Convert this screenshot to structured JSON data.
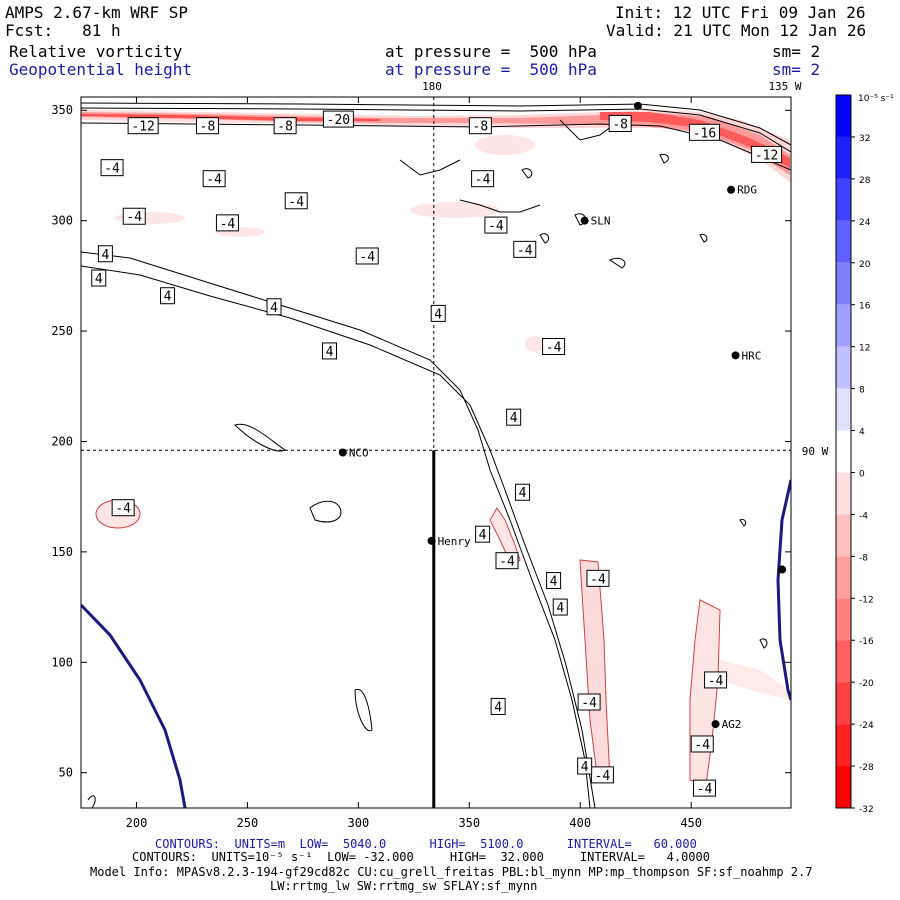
{
  "header": {
    "model_title": "AMPS 2.67-km WRF SP",
    "forecast": "Fcst:   81 h",
    "init": "Init: 12 UTC Fri 09 Jan 26",
    "valid": "Valid: 21 UTC Mon 12 Jan 26",
    "field1_name": "Relative vorticity",
    "field1_level": "at pressure =  500 hPa",
    "field1_smooth": "sm= 2",
    "field2_name": "Geopotential height",
    "field2_level": "at pressure =  500 hPa",
    "field2_smooth": "sm= 2"
  },
  "map_labels": {
    "lon_180": "180",
    "lon_135w": "135 W",
    "lon_90w": "90 W"
  },
  "stations": [
    {
      "name": "RDG",
      "x": 468,
      "y": 314
    },
    {
      "name": "SLN",
      "x": 402,
      "y": 300
    },
    {
      "name": "HRC",
      "x": 470,
      "y": 239
    },
    {
      "name": "NCO",
      "x": 293,
      "y": 195
    },
    {
      "name": "Henry",
      "x": 333,
      "y": 155
    },
    {
      "name": "AG2",
      "x": 461,
      "y": 72
    },
    {
      "name": "",
      "x": 426,
      "y": 352
    },
    {
      "name": "",
      "x": 491,
      "y": 142
    }
  ],
  "colorbar": {
    "unit_label": "10⁻⁵ s⁻¹",
    "ticks": [
      "32",
      "28",
      "24",
      "20",
      "16",
      "12",
      "8",
      "4",
      "0",
      "-4",
      "-8",
      "-12",
      "-16",
      "-20",
      "-24",
      "-28",
      "-32"
    ],
    "colors": [
      "#0000ff",
      "#1f1fff",
      "#4040ff",
      "#6060ff",
      "#8080ff",
      "#a0a0ff",
      "#c0c0ff",
      "#e0e0ff",
      "#ffffff",
      "#ffe0e0",
      "#ffc0c0",
      "#ffa0a0",
      "#ff8080",
      "#ff6060",
      "#ff4040",
      "#ff2020",
      "#ff0000"
    ]
  },
  "chart_data": {
    "type": "contour",
    "xlim": [
      175,
      495
    ],
    "ylim": [
      34,
      356
    ],
    "xticks": [
      200,
      250,
      300,
      350,
      400,
      450
    ],
    "yticks": [
      50,
      100,
      150,
      200,
      250,
      300,
      350
    ],
    "cross_section": {
      "x": 334,
      "y": 196,
      "y_bottom": 34
    },
    "vorticity_labels": [
      {
        "text": "-12",
        "x": 203,
        "y": 343
      },
      {
        "text": "-8",
        "x": 232,
        "y": 343
      },
      {
        "text": "-8",
        "x": 267,
        "y": 343
      },
      {
        "text": "-20",
        "x": 291,
        "y": 346
      },
      {
        "text": "-8",
        "x": 355,
        "y": 343
      },
      {
        "text": "-8",
        "x": 418,
        "y": 344
      },
      {
        "text": "-16",
        "x": 456,
        "y": 340
      },
      {
        "text": "-12",
        "x": 484,
        "y": 330
      },
      {
        "text": "-4",
        "x": 189,
        "y": 324
      },
      {
        "text": "-4",
        "x": 235,
        "y": 319
      },
      {
        "text": "-4",
        "x": 272,
        "y": 309
      },
      {
        "text": "-4",
        "x": 356,
        "y": 319
      },
      {
        "text": "-4",
        "x": 199,
        "y": 302
      },
      {
        "text": "-4",
        "x": 241,
        "y": 299
      },
      {
        "text": "-4",
        "x": 362,
        "y": 298
      },
      {
        "text": "-4",
        "x": 375,
        "y": 287
      },
      {
        "text": "-4",
        "x": 304,
        "y": 284
      },
      {
        "text": "-4",
        "x": 388,
        "y": 243
      },
      {
        "text": "-4",
        "x": 194,
        "y": 170
      },
      {
        "text": "-4",
        "x": 367,
        "y": 146
      },
      {
        "text": "-4",
        "x": 408,
        "y": 138
      },
      {
        "text": "-4",
        "x": 404,
        "y": 82
      },
      {
        "text": "-4",
        "x": 461,
        "y": 92
      },
      {
        "text": "-4",
        "x": 455,
        "y": 63
      },
      {
        "text": "-4",
        "x": 410,
        "y": 49
      },
      {
        "text": "-4",
        "x": 456,
        "y": 43
      }
    ],
    "height_labels": [
      {
        "text": "4",
        "x": 186,
        "y": 285
      },
      {
        "text": "4",
        "x": 183,
        "y": 274
      },
      {
        "text": "4",
        "x": 214,
        "y": 266
      },
      {
        "text": "4",
        "x": 262,
        "y": 261
      },
      {
        "text": "4",
        "x": 336,
        "y": 258
      },
      {
        "text": "4",
        "x": 287,
        "y": 241
      },
      {
        "text": "4",
        "x": 370,
        "y": 211
      },
      {
        "text": "4",
        "x": 374,
        "y": 177
      },
      {
        "text": "4",
        "x": 356,
        "y": 158
      },
      {
        "text": "4",
        "x": 388,
        "y": 137
      },
      {
        "text": "4",
        "x": 391,
        "y": 125
      },
      {
        "text": "4",
        "x": 363,
        "y": 80
      },
      {
        "text": "4",
        "x": 402,
        "y": 53
      }
    ]
  },
  "footer": {
    "line1": "CONTOURS:  UNITS=m  LOW=  5040.0      HIGH=  5100.0      INTERVAL=   60.000",
    "line2": "CONTOURS:  UNITS=10⁻⁵ s⁻¹  LOW= -32.000     HIGH=  32.000     INTERVAL=   4.0000",
    "line3": "Model Info: MPASv8.2.3-194-gf29cd82c CU:cu_grell_freitas PBL:bl_mynn MP:mp_thompson SF:sf_noahmp 2.7",
    "line4": "LW:rrtmg_lw SW:rrtmg_sw SFLAY:sf_mynn"
  }
}
